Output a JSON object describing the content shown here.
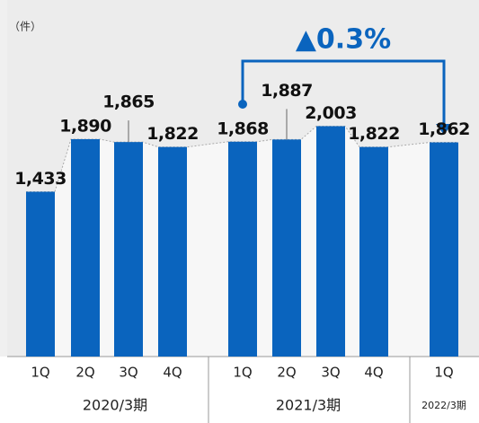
{
  "chart_data": {
    "type": "bar",
    "unit_label": "（件）",
    "annotation": "▲0.3%",
    "categories": [
      "1Q",
      "2Q",
      "3Q",
      "4Q",
      "1Q",
      "2Q",
      "3Q",
      "4Q",
      "1Q"
    ],
    "values": [
      1433,
      1890,
      1865,
      1822,
      1868,
      1887,
      2003,
      1822,
      1862
    ],
    "value_labels": [
      "1,433",
      "1,890",
      "1,865",
      "1,822",
      "1,868",
      "1,887",
      "2,003",
      "1,822",
      "1,862"
    ],
    "groups": [
      "2020/3期",
      "2021/3期",
      "2022/3期"
    ],
    "color": "#0a64be",
    "ylim": [
      0,
      3100
    ]
  }
}
